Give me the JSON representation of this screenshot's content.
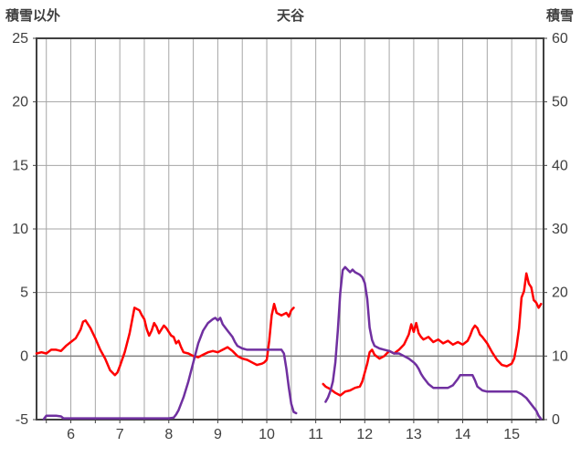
{
  "header": {
    "left_axis_title": "積雪以外",
    "title": "天谷",
    "right_axis_title": "積雪"
  },
  "chart_data": {
    "type": "line",
    "title": "天谷",
    "left_axis": {
      "label": "積雪以外",
      "min": -5,
      "max": 25,
      "ticks": [
        25,
        20,
        15,
        10,
        5,
        0,
        -5
      ]
    },
    "right_axis": {
      "label": "積雪",
      "min": 0,
      "max": 60,
      "ticks": [
        60,
        50,
        40,
        30,
        20,
        10,
        0
      ]
    },
    "x_axis": {
      "min": 5.3,
      "max": 15.65,
      "major_ticks": [
        6,
        7,
        8,
        9,
        10,
        11,
        12,
        13,
        14,
        15
      ],
      "minor_step": 0.5
    },
    "grid": true,
    "zero_line_left": 0,
    "colors": {
      "grid": "#a6a6a6",
      "zero_line": "#808080",
      "border": "#404040",
      "text": "#404040",
      "series_red": "#ff0000",
      "series_purple": "#7030a0"
    },
    "series": [
      {
        "name": "積雪以外",
        "axis": "left",
        "color": "#ff0000",
        "segments": [
          [
            [
              5.3,
              0.2
            ],
            [
              5.4,
              0.3
            ],
            [
              5.5,
              0.2
            ],
            [
              5.6,
              0.5
            ],
            [
              5.7,
              0.5
            ],
            [
              5.8,
              0.4
            ],
            [
              5.9,
              0.8
            ],
            [
              6.0,
              1.1
            ],
            [
              6.1,
              1.4
            ],
            [
              6.2,
              2.1
            ],
            [
              6.25,
              2.7
            ],
            [
              6.3,
              2.8
            ],
            [
              6.4,
              2.2
            ],
            [
              6.5,
              1.4
            ],
            [
              6.6,
              0.5
            ],
            [
              6.7,
              -0.2
            ],
            [
              6.8,
              -1.1
            ],
            [
              6.9,
              -1.5
            ],
            [
              6.95,
              -1.3
            ],
            [
              7.0,
              -0.8
            ],
            [
              7.1,
              0.3
            ],
            [
              7.2,
              1.8
            ],
            [
              7.3,
              3.8
            ],
            [
              7.4,
              3.6
            ],
            [
              7.45,
              3.2
            ],
            [
              7.5,
              2.9
            ],
            [
              7.55,
              2.1
            ],
            [
              7.6,
              1.6
            ],
            [
              7.65,
              2.0
            ],
            [
              7.7,
              2.6
            ],
            [
              7.75,
              2.3
            ],
            [
              7.8,
              1.8
            ],
            [
              7.85,
              2.1
            ],
            [
              7.9,
              2.4
            ],
            [
              7.95,
              2.2
            ],
            [
              8.0,
              1.9
            ],
            [
              8.05,
              1.6
            ],
            [
              8.1,
              1.5
            ],
            [
              8.15,
              1.0
            ],
            [
              8.2,
              1.2
            ],
            [
              8.25,
              0.7
            ],
            [
              8.3,
              0.3
            ],
            [
              8.4,
              0.2
            ],
            [
              8.5,
              0.0
            ],
            [
              8.6,
              -0.1
            ],
            [
              8.7,
              0.1
            ],
            [
              8.8,
              0.3
            ],
            [
              8.9,
              0.4
            ],
            [
              9.0,
              0.3
            ],
            [
              9.1,
              0.5
            ],
            [
              9.2,
              0.7
            ],
            [
              9.3,
              0.4
            ],
            [
              9.4,
              0.0
            ],
            [
              9.5,
              -0.2
            ],
            [
              9.6,
              -0.3
            ],
            [
              9.7,
              -0.5
            ],
            [
              9.8,
              -0.7
            ],
            [
              9.9,
              -0.6
            ],
            [
              9.95,
              -0.5
            ],
            [
              10.0,
              -0.3
            ],
            [
              10.05,
              1.2
            ],
            [
              10.1,
              3.2
            ],
            [
              10.15,
              4.1
            ],
            [
              10.2,
              3.4
            ],
            [
              10.3,
              3.2
            ],
            [
              10.4,
              3.4
            ],
            [
              10.45,
              3.1
            ],
            [
              10.5,
              3.6
            ],
            [
              10.55,
              3.8
            ]
          ],
          [
            [
              11.15,
              -2.2
            ],
            [
              11.2,
              -2.4
            ],
            [
              11.3,
              -2.6
            ],
            [
              11.4,
              -2.9
            ],
            [
              11.5,
              -3.1
            ],
            [
              11.6,
              -2.8
            ],
            [
              11.7,
              -2.7
            ],
            [
              11.8,
              -2.5
            ],
            [
              11.9,
              -2.4
            ],
            [
              11.95,
              -2.0
            ],
            [
              12.0,
              -1.3
            ],
            [
              12.05,
              -0.6
            ],
            [
              12.1,
              0.3
            ],
            [
              12.15,
              0.5
            ],
            [
              12.2,
              0.1
            ],
            [
              12.3,
              -0.2
            ],
            [
              12.4,
              0.0
            ],
            [
              12.5,
              0.4
            ],
            [
              12.6,
              0.2
            ],
            [
              12.7,
              0.5
            ],
            [
              12.8,
              0.9
            ],
            [
              12.9,
              1.7
            ],
            [
              12.95,
              2.5
            ],
            [
              13.0,
              1.9
            ],
            [
              13.05,
              2.6
            ],
            [
              13.1,
              1.8
            ],
            [
              13.15,
              1.5
            ],
            [
              13.2,
              1.3
            ],
            [
              13.3,
              1.5
            ],
            [
              13.4,
              1.1
            ],
            [
              13.5,
              1.3
            ],
            [
              13.6,
              1.0
            ],
            [
              13.7,
              1.2
            ],
            [
              13.8,
              0.9
            ],
            [
              13.9,
              1.1
            ],
            [
              14.0,
              0.9
            ],
            [
              14.1,
              1.2
            ],
            [
              14.15,
              1.6
            ],
            [
              14.2,
              2.1
            ],
            [
              14.25,
              2.4
            ],
            [
              14.3,
              2.2
            ],
            [
              14.35,
              1.7
            ],
            [
              14.4,
              1.5
            ],
            [
              14.5,
              1.0
            ],
            [
              14.6,
              0.3
            ],
            [
              14.7,
              -0.3
            ],
            [
              14.8,
              -0.7
            ],
            [
              14.9,
              -0.8
            ],
            [
              15.0,
              -0.6
            ],
            [
              15.05,
              -0.2
            ],
            [
              15.1,
              0.8
            ],
            [
              15.15,
              2.2
            ],
            [
              15.2,
              4.6
            ],
            [
              15.25,
              5.1
            ],
            [
              15.3,
              6.5
            ],
            [
              15.35,
              5.7
            ],
            [
              15.4,
              5.4
            ],
            [
              15.45,
              4.4
            ],
            [
              15.5,
              4.2
            ],
            [
              15.55,
              3.8
            ],
            [
              15.6,
              4.1
            ]
          ]
        ]
      },
      {
        "name": "積雪",
        "axis": "right",
        "color": "#7030a0",
        "segments": [
          [
            [
              5.45,
              0.1
            ],
            [
              5.5,
              0.6
            ],
            [
              5.6,
              0.6
            ],
            [
              5.7,
              0.6
            ],
            [
              5.8,
              0.5
            ],
            [
              5.85,
              0.2
            ],
            [
              6.0,
              0.2
            ],
            [
              6.5,
              0.2
            ],
            [
              7.0,
              0.2
            ],
            [
              7.5,
              0.2
            ],
            [
              8.0,
              0.2
            ],
            [
              8.1,
              0.3
            ],
            [
              8.15,
              0.8
            ],
            [
              8.2,
              1.5
            ],
            [
              8.3,
              3.5
            ],
            [
              8.4,
              6
            ],
            [
              8.5,
              9
            ],
            [
              8.6,
              12
            ],
            [
              8.7,
              14
            ],
            [
              8.8,
              15.2
            ],
            [
              8.9,
              15.8
            ],
            [
              8.95,
              16
            ],
            [
              9.0,
              15.6
            ],
            [
              9.05,
              16
            ],
            [
              9.1,
              15
            ],
            [
              9.2,
              14
            ],
            [
              9.3,
              13
            ],
            [
              9.35,
              12.2
            ],
            [
              9.4,
              11.6
            ],
            [
              9.5,
              11.2
            ],
            [
              9.6,
              11
            ],
            [
              9.7,
              11
            ],
            [
              9.8,
              11
            ],
            [
              9.9,
              11
            ],
            [
              10.0,
              11
            ],
            [
              10.1,
              11
            ],
            [
              10.2,
              11
            ],
            [
              10.3,
              11
            ],
            [
              10.35,
              10.4
            ],
            [
              10.4,
              8
            ],
            [
              10.45,
              5
            ],
            [
              10.5,
              2.5
            ],
            [
              10.55,
              1.2
            ],
            [
              10.6,
              1.0
            ]
          ],
          [
            [
              11.2,
              2.8
            ],
            [
              11.25,
              3.5
            ],
            [
              11.3,
              4.5
            ],
            [
              11.35,
              6
            ],
            [
              11.4,
              9
            ],
            [
              11.45,
              14
            ],
            [
              11.5,
              20
            ],
            [
              11.55,
              23.5
            ],
            [
              11.6,
              24
            ],
            [
              11.65,
              23.6
            ],
            [
              11.7,
              23.2
            ],
            [
              11.75,
              23.6
            ],
            [
              11.8,
              23.2
            ],
            [
              11.9,
              22.8
            ],
            [
              11.95,
              22.4
            ],
            [
              12.0,
              21.5
            ],
            [
              12.05,
              19
            ],
            [
              12.1,
              14.5
            ],
            [
              12.15,
              12.5
            ],
            [
              12.2,
              11.6
            ],
            [
              12.3,
              11.2
            ],
            [
              12.4,
              11
            ],
            [
              12.5,
              10.8
            ],
            [
              12.6,
              10.4
            ],
            [
              12.7,
              10.4
            ],
            [
              12.8,
              10
            ],
            [
              12.9,
              9.6
            ],
            [
              13.0,
              9
            ],
            [
              13.05,
              8.6
            ],
            [
              13.1,
              8
            ],
            [
              13.15,
              7.2
            ],
            [
              13.2,
              6.6
            ],
            [
              13.3,
              5.6
            ],
            [
              13.4,
              5
            ],
            [
              13.5,
              5
            ],
            [
              13.6,
              5
            ],
            [
              13.7,
              5
            ],
            [
              13.8,
              5.4
            ],
            [
              13.9,
              6.4
            ],
            [
              13.95,
              7
            ],
            [
              14.0,
              7
            ],
            [
              14.1,
              7
            ],
            [
              14.2,
              7
            ],
            [
              14.25,
              6.2
            ],
            [
              14.3,
              5.2
            ],
            [
              14.4,
              4.6
            ],
            [
              14.5,
              4.4
            ],
            [
              14.6,
              4.4
            ],
            [
              14.7,
              4.4
            ],
            [
              14.8,
              4.4
            ],
            [
              14.9,
              4.4
            ],
            [
              15.0,
              4.4
            ],
            [
              15.1,
              4.4
            ],
            [
              15.15,
              4.2
            ],
            [
              15.2,
              4.0
            ],
            [
              15.3,
              3.4
            ],
            [
              15.4,
              2.4
            ],
            [
              15.5,
              1.4
            ],
            [
              15.55,
              0.6
            ],
            [
              15.6,
              0.1
            ]
          ]
        ]
      }
    ]
  }
}
